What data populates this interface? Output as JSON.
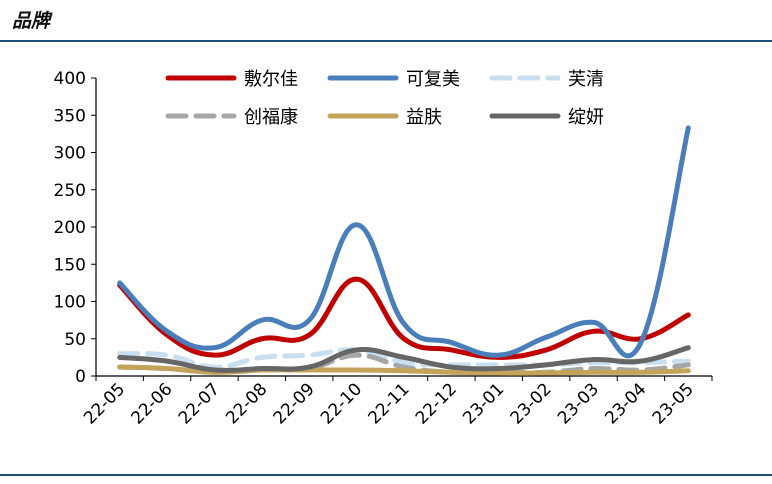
{
  "header": {
    "title": "品牌"
  },
  "chart_data": {
    "type": "line",
    "categories": [
      "22-05",
      "22-06",
      "22-07",
      "22-08",
      "22-09",
      "22-10",
      "22-11",
      "22-12",
      "23-01",
      "23-02",
      "23-03",
      "23-04",
      "23-05"
    ],
    "ylim": [
      0,
      400
    ],
    "yticks": [
      0,
      50,
      100,
      150,
      200,
      250,
      300,
      350,
      400
    ],
    "legend_position": "top",
    "grid": false,
    "series": [
      {
        "name": "敷尔佳",
        "color": "#c00000",
        "dash": "solid",
        "values": [
          122,
          55,
          28,
          50,
          55,
          130,
          50,
          35,
          25,
          35,
          60,
          50,
          82
        ]
      },
      {
        "name": "可复美",
        "color": "#4a7ebb",
        "dash": "solid",
        "values": [
          125,
          60,
          38,
          75,
          75,
          203,
          70,
          45,
          28,
          52,
          72,
          45,
          333
        ]
      },
      {
        "name": "芙清",
        "color": "#c9dff0",
        "dash": "dashed",
        "values": [
          30,
          28,
          12,
          25,
          28,
          35,
          18,
          15,
          15,
          15,
          18,
          18,
          20
        ]
      },
      {
        "name": "创福康",
        "color": "#a6a6a6",
        "dash": "dashed",
        "values": [
          12,
          10,
          5,
          8,
          10,
          28,
          12,
          5,
          5,
          5,
          10,
          8,
          15
        ]
      },
      {
        "name": "益肤",
        "color": "#c4a35a",
        "dash": "solid",
        "values": [
          12,
          10,
          5,
          8,
          8,
          8,
          7,
          5,
          4,
          4,
          5,
          5,
          7
        ]
      },
      {
        "name": "绽妍",
        "color": "#666666",
        "dash": "solid",
        "values": [
          25,
          20,
          8,
          10,
          12,
          35,
          25,
          12,
          10,
          15,
          22,
          20,
          38
        ]
      }
    ]
  }
}
